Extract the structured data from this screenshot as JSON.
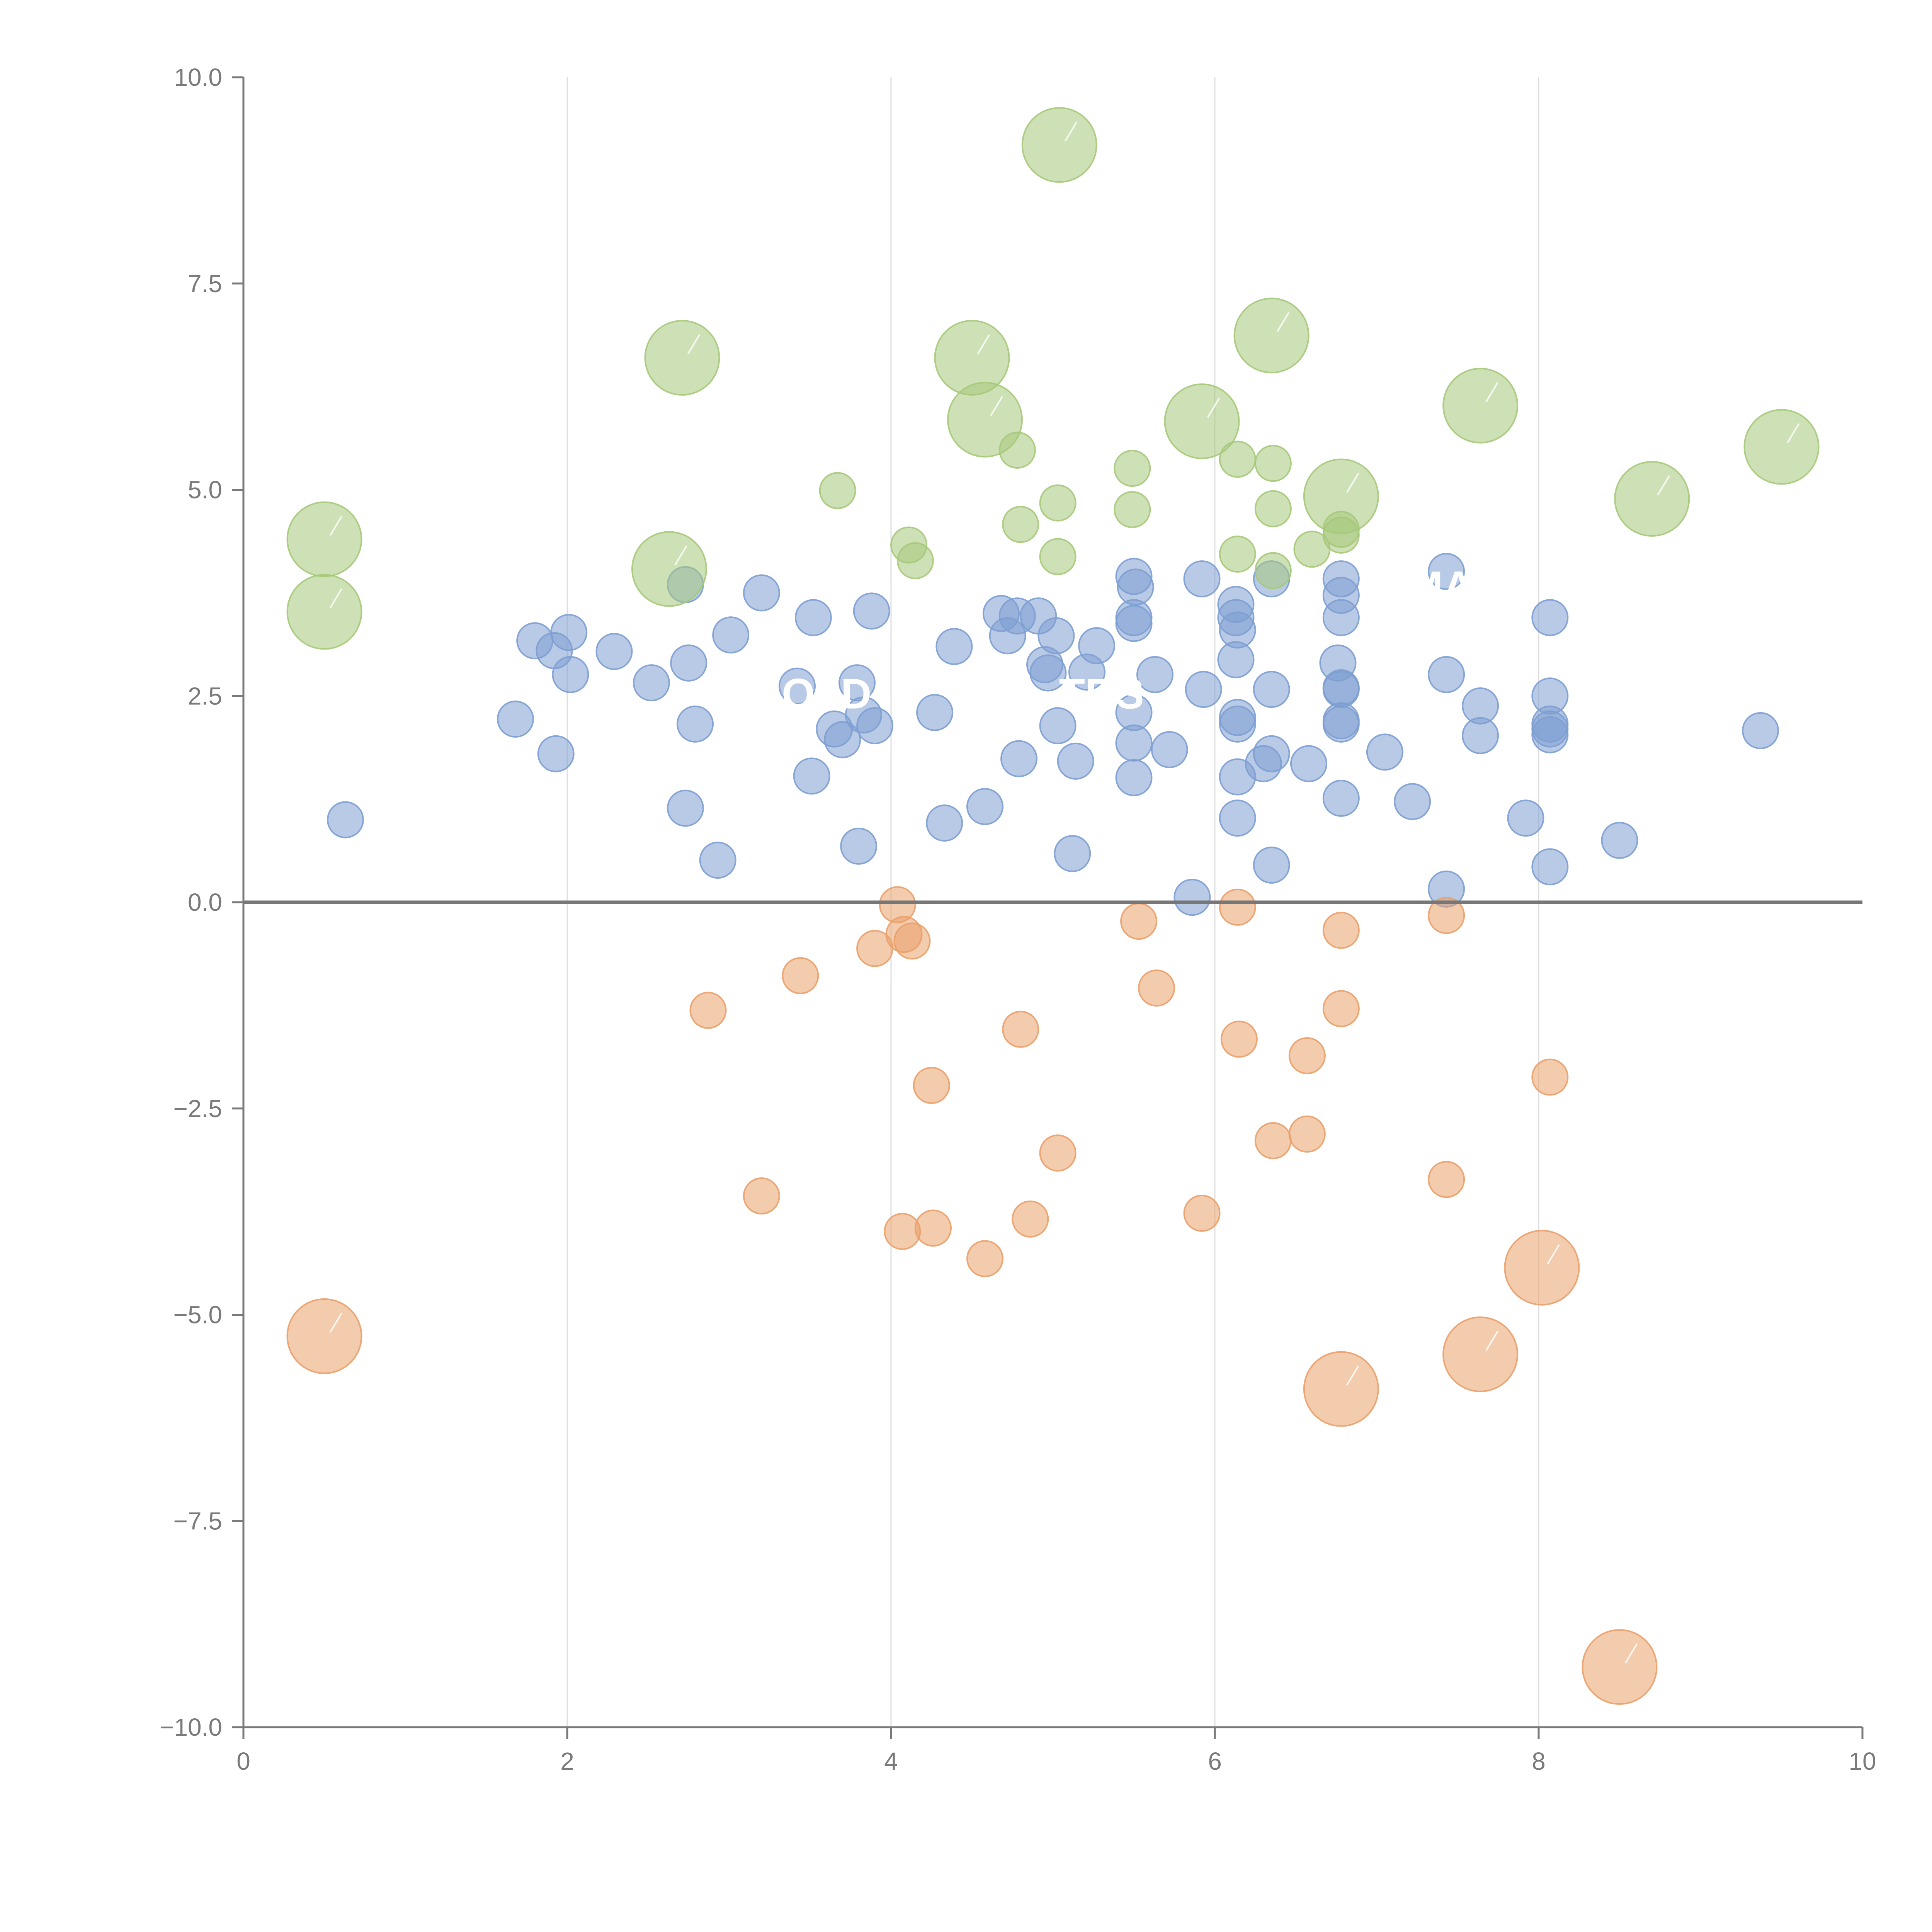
{
  "colors": {
    "positive": "#7d9fd1",
    "negative": "#eaa06a",
    "high": "#a6c97a",
    "axis": "#7a7a7a",
    "grid": "#dddddd",
    "zero_line": "#777777",
    "label": "#ffffff"
  },
  "chart_data": {
    "type": "scatter",
    "title": "",
    "xlabel": "",
    "ylabel": "",
    "xlim": [
      0,
      10
    ],
    "ylim": [
      -10,
      10
    ],
    "x_ticks": [
      0,
      2,
      4,
      6,
      8,
      10
    ],
    "x_tick_labels": [
      "0",
      "2",
      "4",
      "6",
      "8",
      "10"
    ],
    "y_ticks": [
      -10,
      -7.5,
      -5,
      -2.5,
      0,
      2.5,
      5,
      7.5,
      10
    ],
    "y_tick_labels": [
      "−10.0",
      "−7.5",
      "−5.0",
      "−2.5",
      "0.0",
      "2.5",
      "5.0",
      "7.5",
      "10.0"
    ],
    "x_grid_at": [
      2,
      4,
      6,
      8
    ],
    "zero_line_y": 0,
    "overlay_labels": [
      {
        "text": "GOLD",
        "x": 3.5,
        "y": 2.35
      },
      {
        "text": "TRS",
        "x": 5.3,
        "y": 2.35
      },
      {
        "text": "HMA",
        "x": 7.3,
        "y": 3.65
      }
    ],
    "series": [
      {
        "name": "positive",
        "color_key": "positive",
        "size": 1,
        "points": [
          [
            0.63,
            1.0
          ],
          [
            1.68,
            2.22
          ],
          [
            1.8,
            3.17
          ],
          [
            1.92,
            3.05
          ],
          [
            1.93,
            1.8
          ],
          [
            2.01,
            3.27
          ],
          [
            2.02,
            2.76
          ],
          [
            2.29,
            3.04
          ],
          [
            2.52,
            2.66
          ],
          [
            2.73,
            3.85
          ],
          [
            2.75,
            2.9
          ],
          [
            2.73,
            1.14
          ],
          [
            2.79,
            2.16
          ],
          [
            2.93,
            0.51
          ],
          [
            3.01,
            3.24
          ],
          [
            3.2,
            3.75
          ],
          [
            3.42,
            2.62
          ],
          [
            3.51,
            1.53
          ],
          [
            3.52,
            3.45
          ],
          [
            3.65,
            2.1
          ],
          [
            3.7,
            1.97
          ],
          [
            3.79,
            2.66
          ],
          [
            3.8,
            0.68
          ],
          [
            3.83,
            2.27
          ],
          [
            3.88,
            3.53
          ],
          [
            3.9,
            2.14
          ],
          [
            4.27,
            2.3
          ],
          [
            4.33,
            0.96
          ],
          [
            4.39,
            3.1
          ],
          [
            4.58,
            1.16
          ],
          [
            4.68,
            3.5
          ],
          [
            4.72,
            3.23
          ],
          [
            4.78,
            3.47
          ],
          [
            4.79,
            1.74
          ],
          [
            4.91,
            3.47
          ],
          [
            4.95,
            2.88
          ],
          [
            4.97,
            2.78
          ],
          [
            5.02,
            3.23
          ],
          [
            5.03,
            2.14
          ],
          [
            5.12,
            0.59
          ],
          [
            5.14,
            1.71
          ],
          [
            5.21,
            2.79
          ],
          [
            5.27,
            3.11
          ],
          [
            5.5,
            3.95
          ],
          [
            5.5,
            3.45
          ],
          [
            5.5,
            3.38
          ],
          [
            5.5,
            2.3
          ],
          [
            5.5,
            1.93
          ],
          [
            5.5,
            1.51
          ],
          [
            5.51,
            3.82
          ],
          [
            5.63,
            2.76
          ],
          [
            5.72,
            1.85
          ],
          [
            5.86,
            0.06
          ],
          [
            5.92,
            3.92
          ],
          [
            5.93,
            2.58
          ],
          [
            6.13,
            3.61
          ],
          [
            6.13,
            3.45
          ],
          [
            6.14,
            3.3
          ],
          [
            6.13,
            2.94
          ],
          [
            6.14,
            2.24
          ],
          [
            6.14,
            2.16
          ],
          [
            6.14,
            1.52
          ],
          [
            6.14,
            1.02
          ],
          [
            6.3,
            1.68
          ],
          [
            6.35,
            3.92
          ],
          [
            6.35,
            2.58
          ],
          [
            6.35,
            1.8
          ],
          [
            6.35,
            0.45
          ],
          [
            6.58,
            1.68
          ],
          [
            6.76,
            2.9
          ],
          [
            6.78,
            3.92
          ],
          [
            6.78,
            3.72
          ],
          [
            6.78,
            3.45
          ],
          [
            6.78,
            2.6
          ],
          [
            6.78,
            2.58
          ],
          [
            6.78,
            2.2
          ],
          [
            6.78,
            2.16
          ],
          [
            6.78,
            1.26
          ],
          [
            7.05,
            1.82
          ],
          [
            7.22,
            1.22
          ],
          [
            7.43,
            4.01
          ],
          [
            7.43,
            2.76
          ],
          [
            7.43,
            0.16
          ],
          [
            7.64,
            2.38
          ],
          [
            7.64,
            2.02
          ],
          [
            7.92,
            1.02
          ],
          [
            8.07,
            3.45
          ],
          [
            8.07,
            2.5
          ],
          [
            8.07,
            2.16
          ],
          [
            8.07,
            2.1
          ],
          [
            8.07,
            2.03
          ],
          [
            8.07,
            0.43
          ],
          [
            8.5,
            0.75
          ],
          [
            9.37,
            2.08
          ]
        ]
      },
      {
        "name": "negative",
        "color_key": "negative",
        "size": 1,
        "points": [
          [
            2.87,
            -1.31
          ],
          [
            3.2,
            -3.56
          ],
          [
            3.44,
            -0.89
          ],
          [
            3.9,
            -0.56
          ],
          [
            4.04,
            -0.03
          ],
          [
            4.07,
            -3.99
          ],
          [
            4.08,
            -0.39
          ],
          [
            4.13,
            -0.47
          ],
          [
            4.25,
            -2.22
          ],
          [
            4.26,
            -3.95
          ],
          [
            4.58,
            -4.32
          ],
          [
            4.8,
            -1.54
          ],
          [
            4.86,
            -3.84
          ],
          [
            5.03,
            -3.04
          ],
          [
            5.53,
            -0.23
          ],
          [
            5.64,
            -1.04
          ],
          [
            5.92,
            -3.77
          ],
          [
            6.14,
            -0.06
          ],
          [
            6.15,
            -1.66
          ],
          [
            6.36,
            -2.89
          ],
          [
            6.57,
            -1.86
          ],
          [
            6.57,
            -2.81
          ],
          [
            6.78,
            -0.34
          ],
          [
            6.78,
            -1.29
          ],
          [
            7.43,
            -0.16
          ],
          [
            7.43,
            -3.36
          ],
          [
            8.07,
            -2.12
          ]
        ]
      },
      {
        "name": "high",
        "color_key": "high",
        "size": 1,
        "points": [
          [
            3.67,
            4.99
          ],
          [
            4.11,
            4.33
          ],
          [
            4.15,
            4.14
          ],
          [
            4.78,
            5.48
          ],
          [
            4.8,
            4.58
          ],
          [
            5.03,
            4.84
          ],
          [
            5.03,
            4.19
          ],
          [
            5.49,
            5.26
          ],
          [
            5.49,
            4.76
          ],
          [
            6.14,
            5.37
          ],
          [
            6.14,
            4.22
          ],
          [
            6.36,
            5.32
          ],
          [
            6.36,
            4.77
          ],
          [
            6.36,
            4.02
          ],
          [
            6.6,
            4.28
          ],
          [
            6.78,
            4.52
          ],
          [
            6.78,
            4.45
          ]
        ]
      },
      {
        "name": "high-large",
        "color_key": "high",
        "size": 2,
        "points": [
          [
            0.5,
            4.4
          ],
          [
            0.5,
            3.52
          ],
          [
            2.63,
            4.04
          ],
          [
            2.71,
            6.6
          ],
          [
            4.5,
            6.6
          ],
          [
            4.58,
            5.85
          ],
          [
            5.04,
            9.18
          ],
          [
            5.92,
            5.83
          ],
          [
            6.35,
            6.87
          ],
          [
            6.78,
            4.92
          ],
          [
            7.64,
            6.02
          ],
          [
            8.7,
            4.89
          ],
          [
            9.5,
            5.52
          ]
        ]
      },
      {
        "name": "negative-large",
        "color_key": "negative",
        "size": 2,
        "points": [
          [
            0.5,
            -5.26
          ],
          [
            6.78,
            -5.9
          ],
          [
            7.64,
            -5.48
          ],
          [
            8.02,
            -4.43
          ],
          [
            8.5,
            -9.27
          ]
        ]
      }
    ]
  }
}
